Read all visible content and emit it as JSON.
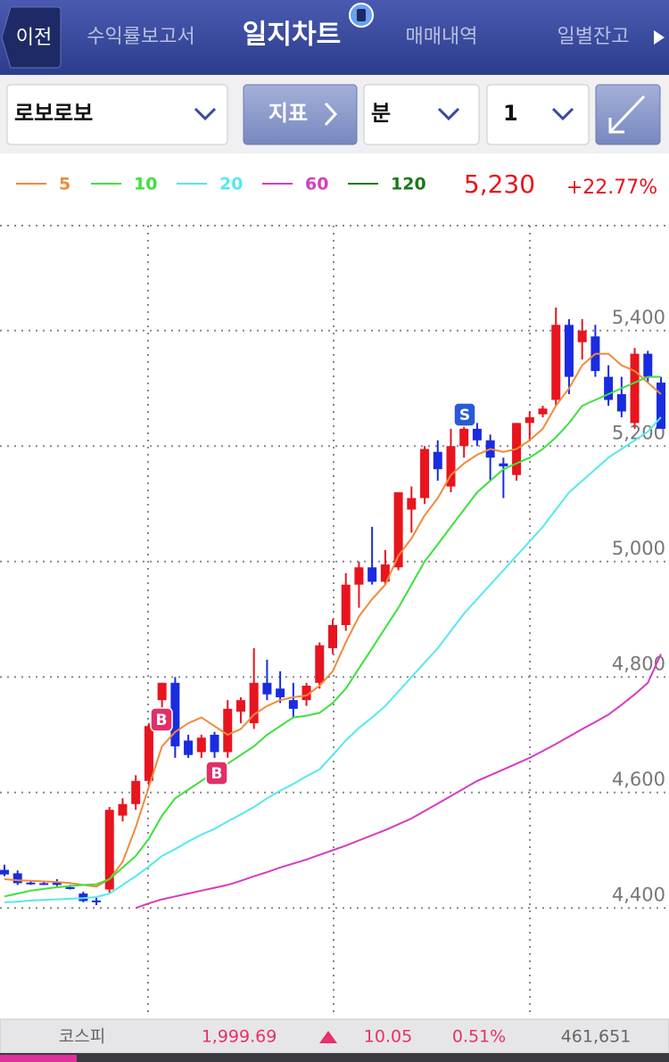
{
  "header": {
    "back": "이전",
    "tabs": [
      "수익률보고서",
      "일지차트",
      "매매내역",
      "일별잔고"
    ]
  },
  "toolbar": {
    "stock": "로보로보",
    "indicator": "지표",
    "period": "분",
    "interval": "1"
  },
  "price": {
    "current": "5,230",
    "change": "+22.77%"
  },
  "footer": {
    "index_name": "코스피",
    "value": "1,999.69",
    "change": "10.05",
    "change_pct": "0.51%",
    "volume": "461,651"
  },
  "chart_data": {
    "type": "candlestick",
    "ylim": [
      4212,
      5602
    ],
    "yticks": [
      {
        "value": 4400,
        "label": "4,400"
      },
      {
        "value": 4600,
        "label": "4,600"
      },
      {
        "value": 4800,
        "label": "4,800"
      },
      {
        "value": 5000,
        "label": "5,000"
      },
      {
        "value": 5200,
        "label": "5,200"
      },
      {
        "value": 5400,
        "label": "5,400"
      }
    ],
    "grid": true,
    "up_color": "#e8141e",
    "down_color": "#1a2be0",
    "candles": {
      "open": [
        4466,
        4460,
        4444,
        4443,
        4446,
        4436,
        4425,
        4413,
        4432,
        4560,
        4580,
        4620,
        4760,
        4790,
        4690,
        4670,
        4700,
        4670,
        4740,
        4720,
        4790,
        4780,
        4760,
        4760,
        4790,
        4850,
        4890,
        4960,
        4990,
        4965,
        4990,
        5090,
        5110,
        5190,
        5130,
        5200,
        5230,
        5210,
        5170,
        5150,
        5240,
        5255,
        5280,
        5410,
        5380,
        5390,
        5320,
        5290,
        5240,
        5360,
        5310
      ],
      "high": [
        4475,
        4465,
        4446,
        4446,
        4450,
        4440,
        4428,
        4418,
        4575,
        4590,
        4630,
        4720,
        4790,
        4800,
        4700,
        4700,
        4705,
        4760,
        4765,
        4850,
        4830,
        4810,
        4790,
        4790,
        4860,
        4900,
        4980,
        5000,
        5060,
        5020,
        5120,
        5130,
        5200,
        5210,
        5230,
        5250,
        5240,
        5220,
        5180,
        5240,
        5260,
        5270,
        5440,
        5420,
        5420,
        5410,
        5340,
        5320,
        5370,
        5365,
        5320
      ],
      "low": [
        4455,
        4440,
        4440,
        4440,
        4438,
        4432,
        4410,
        4405,
        4425,
        4550,
        4570,
        4610,
        4720,
        4660,
        4660,
        4660,
        4660,
        4660,
        4720,
        4710,
        4760,
        4755,
        4730,
        4750,
        4780,
        4840,
        4880,
        4920,
        4960,
        4960,
        4985,
        5050,
        5100,
        5140,
        5120,
        5180,
        5200,
        5140,
        5110,
        5140,
        5210,
        5250,
        5270,
        5290,
        5350,
        5320,
        5270,
        5250,
        5230,
        5310,
        5230
      ],
      "close": [
        4458,
        4443,
        4443,
        4442,
        4440,
        4434,
        4412,
        4410,
        4570,
        4580,
        4620,
        4715,
        4790,
        4680,
        4665,
        4695,
        4670,
        4745,
        4760,
        4790,
        4770,
        4765,
        4745,
        4785,
        4855,
        4890,
        4960,
        4990,
        4965,
        4995,
        5120,
        5110,
        5195,
        5160,
        5200,
        5230,
        5210,
        5180,
        5165,
        5240,
        5250,
        5265,
        5410,
        5320,
        5400,
        5330,
        5280,
        5260,
        5360,
        5320,
        5230
      ]
    },
    "series": [
      {
        "name": "5",
        "color": "#f08a3c",
        "values": [
          4450,
          4448,
          4447,
          4446,
          4445,
          4443,
          4440,
          4437,
          4450,
          4480,
          4540,
          4610,
          4680,
          4705,
          4720,
          4730,
          4715,
          4700,
          4710,
          4735,
          4750,
          4760,
          4765,
          4768,
          4785,
          4810,
          4860,
          4905,
          4935,
          4960,
          5010,
          5040,
          5080,
          5110,
          5150,
          5170,
          5185,
          5195,
          5190,
          5195,
          5210,
          5230,
          5270,
          5300,
          5340,
          5360,
          5360,
          5340,
          5330,
          5310,
          5290
        ]
      },
      {
        "name": "10",
        "color": "#3ee03e",
        "values": [
          4420,
          4425,
          4430,
          4433,
          4436,
          4438,
          4440,
          4441,
          4450,
          4470,
          4490,
          4520,
          4560,
          4590,
          4605,
          4620,
          4635,
          4650,
          4665,
          4680,
          4700,
          4715,
          4730,
          4733,
          4738,
          4755,
          4780,
          4815,
          4850,
          4885,
          4920,
          4960,
          5000,
          5030,
          5060,
          5090,
          5120,
          5140,
          5160,
          5170,
          5180,
          5195,
          5215,
          5240,
          5270,
          5280,
          5290,
          5300,
          5310,
          5320,
          5320
        ]
      },
      {
        "name": "20",
        "color": "#55e8f0",
        "values": [
          4410,
          4411,
          4413,
          4414,
          4415,
          4416,
          4417,
          4419,
          4425,
          4440,
          4455,
          4472,
          4490,
          4502,
          4515,
          4527,
          4537,
          4550,
          4562,
          4575,
          4590,
          4603,
          4615,
          4628,
          4640,
          4665,
          4690,
          4712,
          4730,
          4750,
          4775,
          4800,
          4825,
          4850,
          4880,
          4910,
          4935,
          4960,
          4985,
          5010,
          5035,
          5060,
          5090,
          5120,
          5140,
          5160,
          5180,
          5195,
          5210,
          5225,
          5250
        ]
      },
      {
        "name": "60",
        "color": "#d63cc0",
        "values": [
          null,
          null,
          null,
          null,
          null,
          null,
          null,
          null,
          null,
          null,
          4400,
          4408,
          4415,
          4420,
          4425,
          4430,
          4435,
          4440,
          4447,
          4455,
          4462,
          4470,
          4477,
          4484,
          4492,
          4500,
          4508,
          4517,
          4526,
          4535,
          4545,
          4555,
          4568,
          4581,
          4594,
          4607,
          4620,
          4630,
          4640,
          4650,
          4660,
          4672,
          4684,
          4697,
          4710,
          4722,
          4735,
          4752,
          4770,
          4790,
          4840
        ]
      },
      {
        "name": "120",
        "color": "#1a7a1a"
      }
    ],
    "signals": [
      {
        "label": "B"
      },
      {
        "label": "B"
      },
      {
        "label": "S"
      }
    ]
  }
}
